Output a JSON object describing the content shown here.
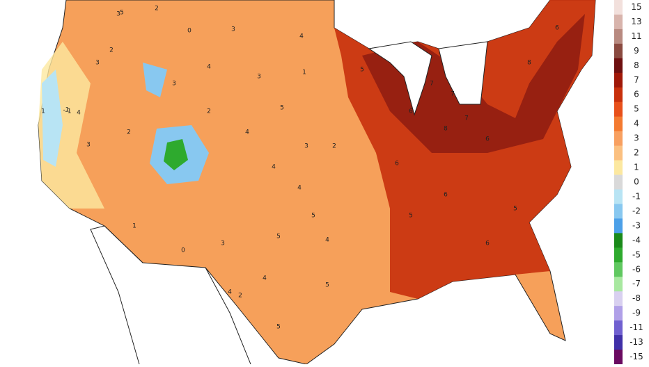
{
  "map": {
    "labels": [
      "3",
      "5",
      "2",
      "0",
      "3",
      "4",
      "2",
      "1",
      "-1",
      "3",
      "1",
      "4",
      "2",
      "4",
      "3",
      "5",
      "3",
      "4",
      "2",
      "4",
      "5",
      "4",
      "6",
      "7",
      "8",
      "6",
      "5",
      "6",
      "7",
      "6",
      "8",
      "7",
      "5",
      "6",
      "4",
      "5",
      "6",
      "5",
      "3",
      "4",
      "5",
      "3",
      "2",
      "4",
      "5",
      "1",
      "-1",
      "3",
      "0",
      "2"
    ]
  },
  "legend": {
    "labels": [
      "15",
      "13",
      "11",
      "9",
      "8",
      "7",
      "6",
      "5",
      "4",
      "3",
      "2",
      "1",
      "0",
      "-1",
      "-2",
      "-3",
      "-4",
      "-5",
      "-6",
      "-7",
      "-8",
      "-9",
      "-11",
      "-13",
      "-15"
    ],
    "colors": [
      "#f2e0dc",
      "#d8b4ac",
      "#b88a80",
      "#8a4a40",
      "#6e1010",
      "#a01808",
      "#c8300c",
      "#e8501a",
      "#f47a30",
      "#f8a060",
      "#fbc080",
      "#fce8a0",
      "#d9d9d9",
      "#b8e4f4",
      "#88c8f0",
      "#4ca0e8",
      "#1a8a1a",
      "#2eaa2e",
      "#60c860",
      "#a8e8a0",
      "#d8d0f0",
      "#b0a0e8",
      "#7060d0",
      "#4030a8",
      "#6a0a60"
    ]
  }
}
